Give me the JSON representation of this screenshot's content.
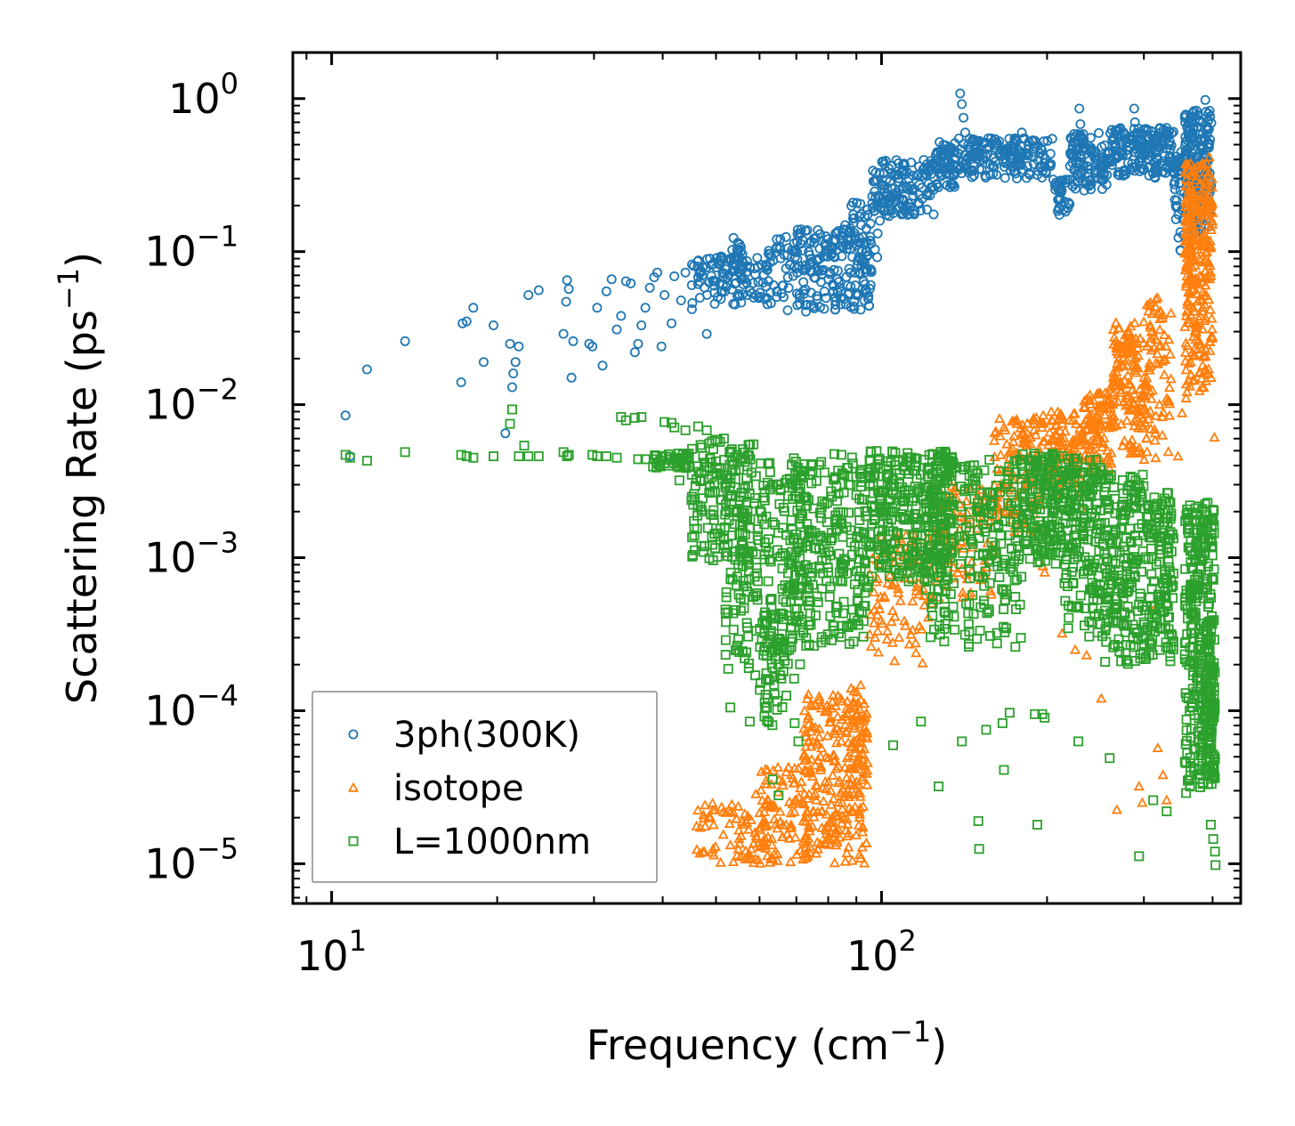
{
  "chart_data": {
    "type": "scatter",
    "title": "",
    "xlabel": "Frequency (cm⁻¹)",
    "xlabel_parts": {
      "text": "Frequency (cm",
      "sup": "−1",
      "tail": ")"
    },
    "ylabel": "Scattering Rate (ps⁻¹)",
    "ylabel_parts": {
      "text": "Scattering Rate (ps",
      "sup": "−1",
      "tail": ")"
    },
    "xscale": "log",
    "yscale": "log",
    "xlim": [
      8.5,
      450
    ],
    "ylim": [
      5.5e-06,
      2.0
    ],
    "xticks": [
      {
        "value": 10,
        "base": "10",
        "exp": "1"
      },
      {
        "value": 100,
        "base": "10",
        "exp": "2"
      }
    ],
    "yticks": [
      {
        "value": 1,
        "base": "10",
        "exp": "0"
      },
      {
        "value": 0.1,
        "base": "10",
        "exp": "−1"
      },
      {
        "value": 0.01,
        "base": "10",
        "exp": "−2"
      },
      {
        "value": 0.001,
        "base": "10",
        "exp": "−3"
      },
      {
        "value": 0.0001,
        "base": "10",
        "exp": "−4"
      },
      {
        "value": 1e-05,
        "base": "10",
        "exp": "−5"
      }
    ],
    "grid": false,
    "legend_position": "lower-left",
    "series": [
      {
        "name": "3ph(300K)",
        "marker": "circle",
        "color": "#1f77b4",
        "points": [
          [
            10.6,
            0.0085
          ],
          [
            10.8,
            0.0046
          ],
          [
            11.6,
            0.017
          ],
          [
            13.6,
            0.026
          ],
          [
            17.3,
            0.034
          ],
          [
            17.6,
            0.035
          ],
          [
            17.2,
            0.014
          ],
          [
            18.1,
            0.043
          ],
          [
            18.9,
            0.019
          ],
          [
            19.7,
            0.033
          ],
          [
            20.7,
            0.0065
          ],
          [
            21.1,
            0.025
          ],
          [
            21.3,
            0.013
          ],
          [
            21.6,
            0.019
          ],
          [
            21.9,
            0.024
          ],
          [
            21.4,
            0.016
          ],
          [
            22.8,
            0.052
          ],
          [
            23.8,
            0.056
          ],
          [
            26.4,
            0.029
          ],
          [
            26.8,
            0.065
          ],
          [
            27.0,
            0.057
          ],
          [
            26.7,
            0.047
          ],
          [
            27.3,
            0.015
          ],
          [
            27.5,
            0.026
          ],
          [
            29.4,
            0.025
          ],
          [
            29.8,
            0.024
          ],
          [
            30.4,
            0.043
          ],
          [
            31.1,
            0.018
          ],
          [
            31.6,
            0.055
          ],
          [
            32.3,
            0.066
          ],
          [
            33.0,
            0.031
          ],
          [
            33.6,
            0.038
          ],
          [
            34.3,
            0.064
          ],
          [
            35.0,
            0.062
          ],
          [
            35.6,
            0.022
          ],
          [
            36.1,
            0.025
          ],
          [
            36.6,
            0.033
          ],
          [
            37.2,
            0.043
          ],
          [
            37.9,
            0.058
          ],
          [
            38.6,
            0.068
          ],
          [
            39.1,
            0.073
          ],
          [
            39.8,
            0.024
          ],
          [
            40.3,
            0.052
          ],
          [
            41.5,
            0.034
          ],
          [
            42.0,
            0.069
          ],
          [
            43.2,
            0.048
          ],
          [
            44.0,
            0.073
          ],
          [
            45.2,
            0.042
          ],
          [
            46.4,
            0.068
          ],
          [
            47.3,
            0.079
          ],
          [
            48.1,
            0.029
          ],
          [
            49.4,
            0.064
          ],
          [
            50.5,
            0.086
          ],
          [
            51.7,
            0.072
          ]
        ],
        "bands": [
          {
            "x0": 45,
            "x1": 62,
            "lo": 0.045,
            "hi": 0.095,
            "n": 110
          },
          {
            "x0": 53,
            "x1": 56,
            "lo": 0.07,
            "hi": 0.13,
            "n": 25
          },
          {
            "x0": 62,
            "x1": 96,
            "lo": 0.04,
            "hi": 0.14,
            "n": 230
          },
          {
            "x0": 85,
            "x1": 100,
            "lo": 0.07,
            "hi": 0.21,
            "n": 40
          },
          {
            "x0": 96,
            "x1": 125,
            "lo": 0.17,
            "hi": 0.4,
            "n": 140
          },
          {
            "x0": 125,
            "x1": 136,
            "lo": 0.26,
            "hi": 0.52,
            "n": 60
          },
          {
            "x0": 136,
            "x1": 205,
            "lo": 0.3,
            "hi": 0.55,
            "n": 180
          },
          {
            "x0": 205,
            "x1": 220,
            "lo": 0.17,
            "hi": 0.3,
            "n": 35
          },
          {
            "x0": 220,
            "x1": 262,
            "lo": 0.25,
            "hi": 0.6,
            "n": 120
          },
          {
            "x0": 262,
            "x1": 340,
            "lo": 0.3,
            "hi": 0.65,
            "n": 180
          },
          {
            "x0": 340,
            "x1": 356,
            "lo": 0.1,
            "hi": 0.45,
            "n": 40
          },
          {
            "x0": 356,
            "x1": 398,
            "lo": 0.13,
            "hi": 0.85,
            "n": 180
          }
        ],
        "spikes": [
          [
            139,
            1.08
          ],
          [
            140,
            0.92
          ],
          [
            141,
            0.75
          ],
          [
            142,
            0.6
          ],
          [
            180,
            0.6
          ],
          [
            229,
            0.86
          ],
          [
            230,
            0.68
          ],
          [
            288,
            0.86
          ],
          [
            289,
            0.7
          ],
          [
            388,
            0.98
          ],
          [
            389,
            0.82
          ],
          [
            393,
            0.72
          ],
          [
            160,
            0.41
          ],
          [
            117,
            0.36
          ]
        ]
      },
      {
        "name": "isotope",
        "marker": "triangle",
        "color": "#ff7f0e",
        "points": [
          [
            56.2,
            1.8e-05
          ],
          [
            57.6,
            1.12e-05
          ],
          [
            59.1,
            2.85e-05
          ],
          [
            63.4,
            2.4e-05
          ],
          [
            69.5,
            4.2e-05
          ],
          [
            196.5,
            0.00088
          ],
          [
            198.0,
            0.0008
          ],
          [
            213.0,
            0.00032
          ],
          [
            225.0,
            0.00025
          ],
          [
            236.0,
            0.00023
          ],
          [
            251.0,
            0.00012
          ],
          [
            268.0,
            2.25e-05
          ],
          [
            275.0,
            0.00062
          ],
          [
            294.0,
            3.2e-05
          ],
          [
            298.0,
            2.5e-05
          ],
          [
            312.0,
            0.00045
          ],
          [
            318.0,
            5.7e-05
          ],
          [
            325.0,
            3.8e-05
          ],
          [
            330.0,
            2.6e-05
          ],
          [
            346.0,
            0.0046
          ],
          [
            352.0,
            0.0088
          ],
          [
            358.0,
            0.011
          ],
          [
            403.0,
            0.0061
          ],
          [
            232.0,
            0.0021
          ],
          [
            236.0,
            0.0068
          ],
          [
            261.0,
            0.013
          ],
          [
            275.0,
            0.018
          ],
          [
            290.0,
            0.027
          ],
          [
            300.0,
            0.015
          ]
        ],
        "bands": [
          {
            "x0": 46,
            "x1": 66,
            "lo": 1e-05,
            "hi": 2.5e-05,
            "n": 90
          },
          {
            "x0": 60,
            "x1": 75,
            "lo": 1e-05,
            "hi": 4.5e-05,
            "n": 80
          },
          {
            "x0": 72,
            "x1": 94,
            "lo": 1e-05,
            "hi": 0.00013,
            "n": 240
          },
          {
            "x0": 88,
            "x1": 95,
            "lo": 2e-05,
            "hi": 0.00015,
            "n": 40
          },
          {
            "x0": 95,
            "x1": 125,
            "lo": 0.0002,
            "hi": 0.0015,
            "n": 100
          },
          {
            "x0": 125,
            "x1": 160,
            "lo": 0.0005,
            "hi": 0.003,
            "n": 90
          },
          {
            "x0": 160,
            "x1": 200,
            "lo": 0.0014,
            "hi": 0.0085,
            "n": 130
          },
          {
            "x0": 200,
            "x1": 232,
            "lo": 0.0025,
            "hi": 0.009,
            "n": 90
          },
          {
            "x0": 232,
            "x1": 262,
            "lo": 0.0035,
            "hi": 0.012,
            "n": 100
          },
          {
            "x0": 262,
            "x1": 300,
            "lo": 0.0045,
            "hi": 0.035,
            "n": 140
          },
          {
            "x0": 300,
            "x1": 336,
            "lo": 0.004,
            "hi": 0.05,
            "n": 80
          },
          {
            "x0": 356,
            "x1": 400,
            "lo": 0.012,
            "hi": 0.42,
            "n": 260
          },
          {
            "x0": 356,
            "x1": 368,
            "lo": 0.05,
            "hi": 0.25,
            "n": 40
          }
        ],
        "spikes": []
      },
      {
        "name": "L=1000nm",
        "marker": "square",
        "color": "#2ca02c",
        "points": [
          [
            10.6,
            0.0047
          ],
          [
            10.8,
            0.0045
          ],
          [
            11.6,
            0.0043
          ],
          [
            13.6,
            0.0049
          ],
          [
            17.2,
            0.0047
          ],
          [
            17.6,
            0.0046
          ],
          [
            18.1,
            0.0045
          ],
          [
            19.7,
            0.0046
          ],
          [
            21.3,
            0.0093
          ],
          [
            21.1,
            0.0075
          ],
          [
            21.9,
            0.0046
          ],
          [
            22.4,
            0.0054
          ],
          [
            22.8,
            0.0046
          ],
          [
            23.8,
            0.0046
          ],
          [
            26.4,
            0.0049
          ],
          [
            26.8,
            0.0046
          ],
          [
            27.0,
            0.0047
          ],
          [
            29.8,
            0.0047
          ],
          [
            30.4,
            0.0046
          ],
          [
            31.6,
            0.0046
          ],
          [
            33.0,
            0.0045
          ],
          [
            33.6,
            0.0083
          ],
          [
            34.3,
            0.0079
          ],
          [
            35.6,
            0.0082
          ],
          [
            36.1,
            0.0044
          ],
          [
            36.6,
            0.0083
          ],
          [
            37.2,
            0.0044
          ],
          [
            38.6,
            0.0044
          ],
          [
            40.3,
            0.0077
          ],
          [
            41.5,
            0.0076
          ],
          [
            42.0,
            0.0071
          ],
          [
            43.2,
            0.0044
          ],
          [
            44.0,
            0.0068
          ],
          [
            46.4,
            0.0072
          ],
          [
            48.1,
            0.0068
          ],
          [
            51.7,
            0.006
          ],
          [
            58.5,
            0.0055
          ],
          [
            42.9,
            0.0032
          ],
          [
            45.2,
            0.0025
          ],
          [
            47.1,
            0.002
          ],
          [
            49.4,
            0.0019
          ],
          [
            51.0,
            0.0024
          ],
          [
            52.1,
            0.00038
          ],
          [
            53.1,
            0.000105
          ],
          [
            57.6,
            8.5e-05
          ],
          [
            63.4,
            3.55e-05
          ],
          [
            69.5,
            8.3e-05
          ],
          [
            70.6,
            6.3e-05
          ],
          [
            65.0,
            2.8e-05
          ],
          [
            105.0,
            5.95e-05
          ],
          [
            118.0,
            8.5e-05
          ],
          [
            127.0,
            3.2e-05
          ],
          [
            140.0,
            6.3e-05
          ],
          [
            155.0,
            7.5e-05
          ],
          [
            166.0,
            8.3e-05
          ],
          [
            171.0,
            9.7e-05
          ],
          [
            190.0,
            9.5e-05
          ],
          [
            198.0,
            9e-05
          ],
          [
            196.0,
            9.5e-05
          ],
          [
            150.0,
            1.9e-05
          ],
          [
            150.5,
            1.25e-05
          ],
          [
            167.0,
            4.1e-05
          ],
          [
            192.0,
            1.8e-05
          ],
          [
            228.0,
            6.3e-05
          ],
          [
            260.0,
            4.9e-05
          ],
          [
            294.0,
            1.12e-05
          ],
          [
            312.0,
            2.6e-05
          ],
          [
            330.0,
            2.2e-05
          ],
          [
            358.0,
            2.9e-05
          ],
          [
            397.0,
            1.8e-05
          ],
          [
            401.0,
            1.45e-05
          ],
          [
            404.0,
            1.2e-05
          ],
          [
            405.0,
            9.8e-06
          ]
        ],
        "bands": [
          {
            "x0": 38,
            "x1": 45,
            "lo": 0.0038,
            "hi": 0.0048,
            "n": 40
          },
          {
            "x0": 45,
            "x1": 58,
            "lo": 0.0009,
            "hi": 0.006,
            "n": 150
          },
          {
            "x0": 52,
            "x1": 72,
            "lo": 0.00015,
            "hi": 0.0042,
            "n": 200
          },
          {
            "x0": 60,
            "x1": 68,
            "lo": 8e-05,
            "hi": 0.00045,
            "n": 60
          },
          {
            "x0": 68,
            "x1": 95,
            "lo": 0.00025,
            "hi": 0.0048,
            "n": 280
          },
          {
            "x0": 95,
            "x1": 135,
            "lo": 0.0007,
            "hi": 0.005,
            "n": 320
          },
          {
            "x0": 120,
            "x1": 180,
            "lo": 0.00025,
            "hi": 0.0045,
            "n": 260
          },
          {
            "x0": 180,
            "x1": 215,
            "lo": 0.0009,
            "hi": 0.0048,
            "n": 170
          },
          {
            "x0": 215,
            "x1": 255,
            "lo": 0.0003,
            "hi": 0.0045,
            "n": 190
          },
          {
            "x0": 255,
            "x1": 300,
            "lo": 0.0002,
            "hi": 0.0035,
            "n": 190
          },
          {
            "x0": 300,
            "x1": 340,
            "lo": 0.0002,
            "hi": 0.0027,
            "n": 160
          },
          {
            "x0": 356,
            "x1": 404,
            "lo": 3e-05,
            "hi": 0.0023,
            "n": 320
          },
          {
            "x0": 388,
            "x1": 404,
            "lo": 3e-05,
            "hi": 0.0003,
            "n": 80
          }
        ],
        "spikes": []
      }
    ]
  }
}
